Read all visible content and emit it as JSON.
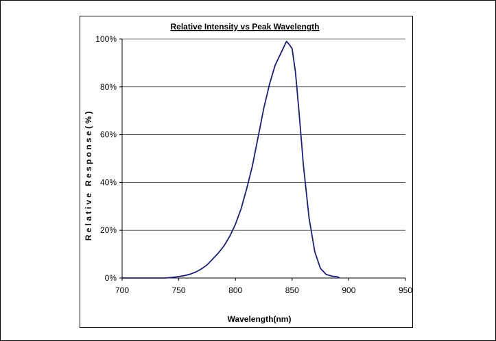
{
  "chart_data": {
    "type": "line",
    "title": "Relative Intensity vs Peak Wavelength",
    "xlabel": "Wavelength(nm)",
    "ylabel": "R e l a t i v e   R e s p o n s e ( % )",
    "xlim": [
      700,
      950
    ],
    "ylim": [
      0,
      100
    ],
    "x_ticks": [
      700,
      750,
      800,
      850,
      900,
      950
    ],
    "x_tick_labels": [
      "700",
      "750",
      "800",
      "850",
      "900",
      "950"
    ],
    "y_ticks": [
      0,
      20,
      40,
      60,
      80,
      100
    ],
    "y_tick_labels": [
      "0%",
      "20%",
      "40%",
      "60%",
      "80%",
      "100%"
    ],
    "grid": "horizontal",
    "legend": "none",
    "colors": {
      "line": "#1a1a8c",
      "grid": "#000000",
      "axis": "#000000"
    },
    "series": [
      {
        "x": [
          738,
          745,
          750,
          755,
          760,
          765,
          770,
          775,
          780,
          785,
          790,
          795,
          800,
          805,
          810,
          815,
          820,
          825,
          830,
          835,
          840,
          843,
          845,
          847,
          850,
          853,
          856,
          860,
          865,
          870,
          875,
          880,
          885,
          890,
          892
        ],
        "y": [
          0,
          0.3,
          0.6,
          1,
          1.6,
          2.5,
          3.8,
          5.5,
          8,
          10.5,
          13.5,
          17.5,
          22.5,
          29,
          37.5,
          47,
          59,
          71,
          81,
          89,
          94,
          97,
          99,
          98,
          96,
          86,
          70,
          47,
          25,
          11,
          4,
          1.5,
          0.8,
          0.5,
          0
        ]
      }
    ]
  }
}
